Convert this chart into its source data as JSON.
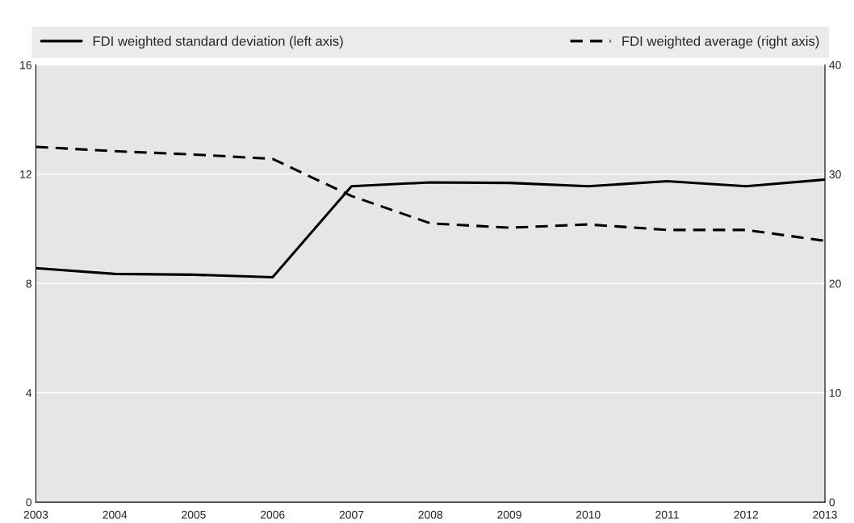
{
  "chart_data": {
    "type": "line",
    "x": [
      2003,
      2004,
      2005,
      2006,
      2007,
      2008,
      2009,
      2010,
      2011,
      2012,
      2013
    ],
    "xlim": [
      2003,
      2013
    ],
    "xticks": [
      2003,
      2004,
      2005,
      2006,
      2007,
      2008,
      2009,
      2010,
      2011,
      2012,
      2013
    ],
    "ylim": [
      0,
      16
    ],
    "yticks": [
      0,
      4,
      8,
      12,
      16
    ],
    "y2lim": [
      0,
      40
    ],
    "y2ticks": [
      0,
      10,
      20,
      30,
      40
    ],
    "grid": "y",
    "legend": "top",
    "marker": "none",
    "series": [
      {
        "name": "FDI weighted standard deviation (left axis)",
        "color": "#000000",
        "line_style": "solid",
        "values": [
          8.56,
          8.35,
          8.32,
          8.23,
          11.56,
          11.7,
          11.68,
          11.56,
          11.74,
          11.56,
          11.8
        ]
      },
      {
        "name": "FDI weighted average (right axis)",
        "color": "#000000",
        "line_style": "dashed",
        "axis": "y2",
        "values": [
          32.5,
          32.1,
          31.8,
          31.4,
          28.0,
          25.5,
          25.1,
          25.4,
          24.9,
          24.9,
          23.9
        ]
      }
    ]
  }
}
